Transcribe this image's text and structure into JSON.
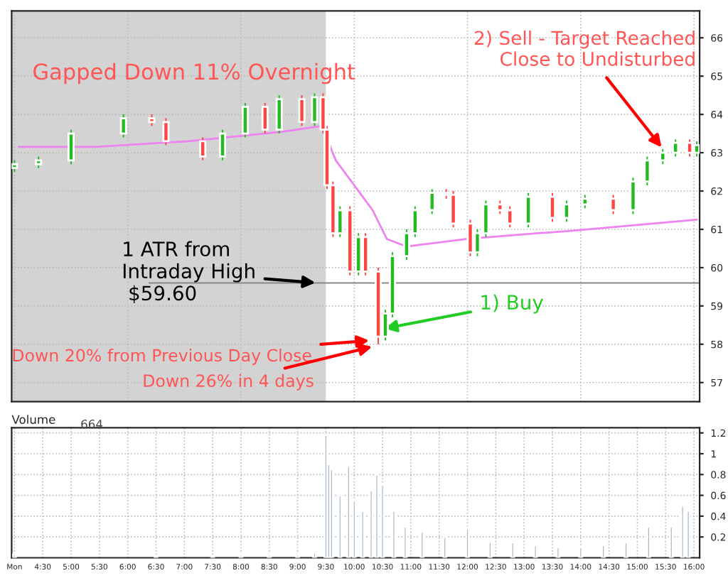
{
  "chart_data": [
    {
      "type": "candlestick",
      "grid": true,
      "tick_labels": "y",
      "xlim": [
        3.95,
        16.1
      ],
      "ylim": [
        56.5,
        66.7
      ],
      "yticks": [
        57,
        58,
        59,
        60,
        61,
        62,
        63,
        64,
        65,
        66
      ],
      "x": [
        4.0,
        4.425,
        5.0,
        5.925,
        6.425,
        6.675,
        7.325,
        7.675,
        8.075,
        8.425,
        8.675,
        9.075,
        9.3,
        9.45,
        9.52,
        9.625,
        9.75,
        9.925,
        10.075,
        10.2,
        10.425,
        10.55,
        10.675,
        10.925,
        11.075,
        11.375,
        11.625,
        11.75,
        12.05,
        12.175,
        12.325,
        12.575,
        12.75,
        13.075,
        13.5,
        13.75,
        14.075,
        14.575,
        14.925,
        15.175,
        15.45,
        15.675,
        15.925,
        16.05
      ],
      "ohlc": [
        [
          62.6,
          62.8,
          62.5,
          62.7
        ],
        [
          62.7,
          62.9,
          62.6,
          62.8
        ],
        [
          62.8,
          63.6,
          62.7,
          63.5
        ],
        [
          63.5,
          64.0,
          63.4,
          63.9
        ],
        [
          63.9,
          64.0,
          63.7,
          63.8
        ],
        [
          63.8,
          63.9,
          63.2,
          63.3
        ],
        [
          63.3,
          63.4,
          62.8,
          62.9
        ],
        [
          62.9,
          63.6,
          62.8,
          63.5
        ],
        [
          63.5,
          64.3,
          63.4,
          64.2
        ],
        [
          64.2,
          64.3,
          63.5,
          63.6
        ],
        [
          63.6,
          64.5,
          63.5,
          64.4
        ],
        [
          64.4,
          64.5,
          63.7,
          63.8
        ],
        [
          63.8,
          64.55,
          63.7,
          64.45
        ],
        [
          64.45,
          64.55,
          63.5,
          63.6
        ],
        [
          63.6,
          63.7,
          62.05,
          62.15
        ],
        [
          62.15,
          62.25,
          60.8,
          60.9
        ],
        [
          60.9,
          61.6,
          60.8,
          61.5
        ],
        [
          61.5,
          61.6,
          59.8,
          59.9
        ],
        [
          59.9,
          60.9,
          59.8,
          60.8
        ],
        [
          60.8,
          60.9,
          59.8,
          59.9
        ],
        [
          59.9,
          60.0,
          58.0,
          58.2
        ],
        [
          58.2,
          58.9,
          58.1,
          58.8
        ],
        [
          58.8,
          60.4,
          58.7,
          60.3
        ],
        [
          60.3,
          61.0,
          60.2,
          60.9
        ],
        [
          60.9,
          61.6,
          60.8,
          61.5
        ],
        [
          61.5,
          62.05,
          61.4,
          61.95
        ],
        [
          61.95,
          62.05,
          61.8,
          61.9
        ],
        [
          61.9,
          62.0,
          61.05,
          61.15
        ],
        [
          61.15,
          61.25,
          60.3,
          60.4
        ],
        [
          60.4,
          61.0,
          60.3,
          60.9
        ],
        [
          60.9,
          61.75,
          60.8,
          61.65
        ],
        [
          61.65,
          61.75,
          61.4,
          61.5
        ],
        [
          61.5,
          61.6,
          61.05,
          61.15
        ],
        [
          61.15,
          61.95,
          61.05,
          61.85
        ],
        [
          61.85,
          61.95,
          61.2,
          61.3
        ],
        [
          61.3,
          61.75,
          61.2,
          61.65
        ],
        [
          61.65,
          61.9,
          61.55,
          61.8
        ],
        [
          61.8,
          61.9,
          61.4,
          61.5
        ],
        [
          61.5,
          62.35,
          61.4,
          62.25
        ],
        [
          62.25,
          62.9,
          62.15,
          62.8
        ],
        [
          62.8,
          63.1,
          62.7,
          63.0
        ],
        [
          63.0,
          63.35,
          62.9,
          63.26
        ],
        [
          63.26,
          63.35,
          62.9,
          63.0
        ],
        [
          63.0,
          63.3,
          62.9,
          63.2
        ]
      ],
      "series": [
        {
          "type": "line",
          "color": "#ee82ee",
          "x": [
            4.075,
            5.425,
            7.075,
            8.75,
            9.425,
            9.675,
            10.0,
            10.325,
            10.575,
            10.925,
            12.0,
            13.25,
            13.75,
            16.05
          ],
          "values": [
            63.15,
            63.15,
            63.3,
            63.55,
            63.7,
            62.8,
            62.15,
            61.5,
            60.75,
            60.55,
            60.75,
            60.9,
            60.95,
            61.25
          ]
        }
      ],
      "bands": [
        {
          "axis": "x",
          "from": 3.95,
          "to": 9.5,
          "color": "#d3d3d3"
        }
      ],
      "ref_lines": [
        {
          "axis": "y",
          "value": 59.6,
          "color": "#888888"
        }
      ],
      "annotations": [
        "Gapped Down 11% Overnight",
        {
          "text": "2) Sell - Target Reached\nClose to Undisturbed",
          "x": 15.45,
          "y": 63.1
        },
        {
          "text": "1 ATR from\nIntraday High\n $59.60",
          "x": 9.35,
          "y": 59.6
        },
        {
          "text": "Down 20% from Previous Day Close",
          "x": 10.3,
          "y": 58.1
        },
        {
          "text": "Down 26% in 4 days",
          "x": 10.35,
          "y": 57.95
        },
        {
          "text": "1) Buy",
          "x": 10.5,
          "y": 58.4
        }
      ]
    },
    {
      "type": "bar",
      "title": "Volume",
      "annotations": [
        "664"
      ],
      "color": "#a9b9c9",
      "grid": true,
      "xlim": [
        3.95,
        16.1
      ],
      "ylim": [
        0,
        1.25
      ],
      "yticks": [
        0.2,
        0.4,
        0.6,
        0.8,
        1,
        1.2
      ],
      "xticks": [
        {
          "value": 4.0,
          "label": "Mon"
        },
        {
          "value": 4.5,
          "label": "4:30"
        },
        {
          "value": 5.0,
          "label": "5:00"
        },
        {
          "value": 5.5,
          "label": "5:30"
        },
        {
          "value": 6.0,
          "label": "6:00"
        },
        {
          "value": 6.5,
          "label": "6:30"
        },
        {
          "value": 7.0,
          "label": "7:00"
        },
        {
          "value": 7.5,
          "label": "7:30"
        },
        {
          "value": 8.0,
          "label": "8:00"
        },
        {
          "value": 8.5,
          "label": "8:30"
        },
        {
          "value": 9.0,
          "label": "9:00"
        },
        {
          "value": 9.5,
          "label": "9:30"
        },
        {
          "value": 10.0,
          "label": "10:00"
        },
        {
          "value": 10.5,
          "label": "10:30"
        },
        {
          "value": 11.0,
          "label": "11:00"
        },
        {
          "value": 11.5,
          "label": "11:30"
        },
        {
          "value": 12.0,
          "label": "12:00"
        },
        {
          "value": 12.5,
          "label": "12:30"
        },
        {
          "value": 13.0,
          "label": "13:00"
        },
        {
          "value": 13.5,
          "label": "13:30"
        },
        {
          "value": 14.0,
          "label": "14:00"
        },
        {
          "value": 14.5,
          "label": "14:30"
        },
        {
          "value": 15.0,
          "label": "15:00"
        },
        {
          "value": 15.5,
          "label": "15:30"
        },
        {
          "value": 16.0,
          "label": "16:00"
        }
      ],
      "x": [
        4.0,
        6.5,
        7.5,
        8.0,
        8.5,
        9.0,
        9.3,
        9.5,
        9.55,
        9.6,
        9.75,
        9.9,
        10.0,
        10.15,
        10.3,
        10.4,
        10.5,
        10.7,
        10.9,
        11.2,
        11.6,
        12.0,
        12.4,
        12.8,
        13.2,
        13.6,
        14.0,
        14.4,
        14.8,
        15.2,
        15.6,
        15.8,
        15.9
      ],
      "values": [
        0.03,
        0.02,
        0.02,
        0.03,
        0.03,
        0.03,
        0.05,
        1.18,
        0.9,
        0.85,
        0.6,
        0.88,
        0.55,
        0.45,
        0.65,
        0.8,
        0.7,
        0.45,
        0.3,
        0.25,
        0.2,
        0.28,
        0.15,
        0.15,
        0.12,
        0.1,
        0.1,
        0.12,
        0.15,
        0.3,
        0.3,
        0.5,
        0.45
      ]
    }
  ]
}
